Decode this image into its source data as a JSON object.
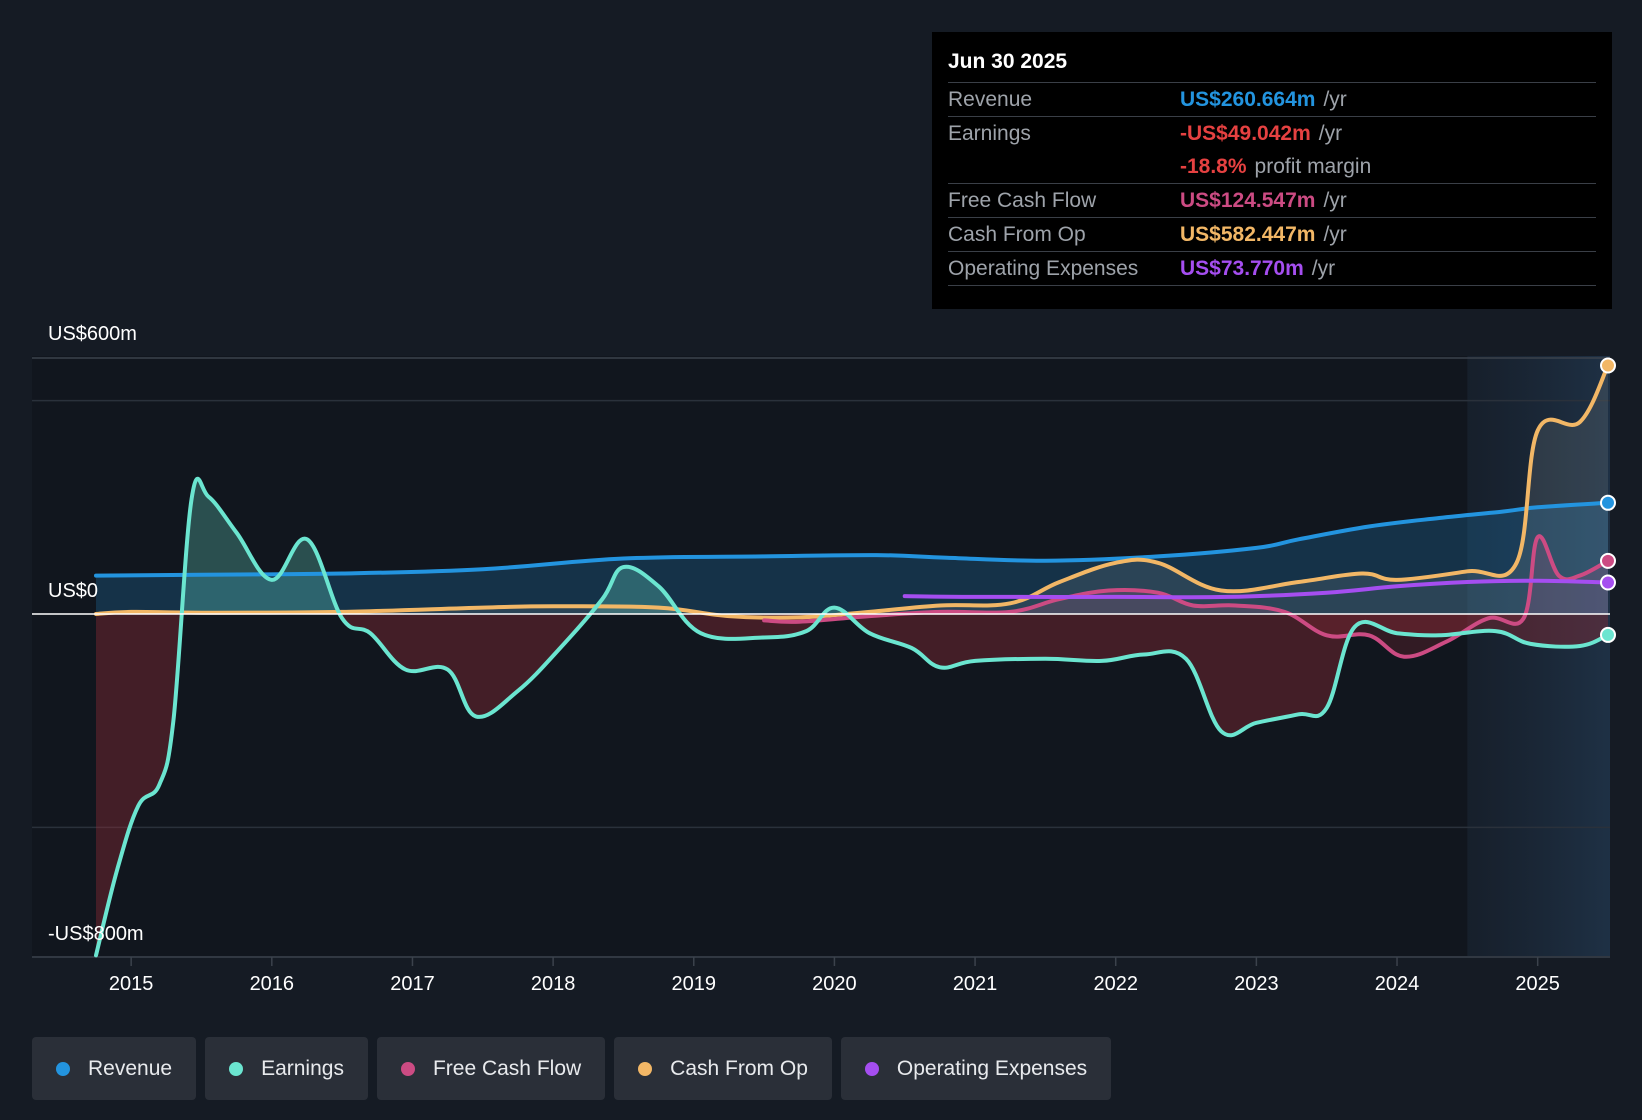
{
  "tooltip": {
    "date": "Jun 30 2025",
    "rows": [
      {
        "label": "Revenue",
        "value": "US$260.664m",
        "unit": "/yr",
        "color": "#2394df"
      },
      {
        "label": "Earnings",
        "value": "-US$49.042m",
        "unit": "/yr",
        "color": "#e64141"
      },
      {
        "label": "",
        "value": "-18.8%",
        "unit": "profit margin",
        "color": "#e64141"
      },
      {
        "label": "Free Cash Flow",
        "value": "US$124.547m",
        "unit": "/yr",
        "color": "#cc4b83"
      },
      {
        "label": "Cash From Op",
        "value": "US$582.447m",
        "unit": "/yr",
        "color": "#f2b766"
      },
      {
        "label": "Operating Expenses",
        "value": "US$73.770m",
        "unit": "/yr",
        "color": "#a54ef0"
      }
    ]
  },
  "legend": [
    {
      "label": "Revenue",
      "color": "#2394df"
    },
    {
      "label": "Earnings",
      "color": "#6be5d0"
    },
    {
      "label": "Free Cash Flow",
      "color": "#cc4b83"
    },
    {
      "label": "Cash From Op",
      "color": "#f2b766"
    },
    {
      "label": "Operating Expenses",
      "color": "#a54ef0"
    }
  ],
  "chart_data": {
    "type": "line",
    "title": "",
    "xlabel": "",
    "ylabel": "",
    "ylim": [
      -800,
      600
    ],
    "y_tick_labels": [
      {
        "value": 600,
        "label": "US$600m"
      },
      {
        "value": 0,
        "label": "US$0"
      },
      {
        "value": -800,
        "label": "-US$800m"
      }
    ],
    "x_tick_labels": [
      "2015",
      "2016",
      "2017",
      "2018",
      "2019",
      "2020",
      "2021",
      "2022",
      "2023",
      "2024",
      "2025"
    ],
    "forecast_shade_start": 2024.5,
    "series": [
      {
        "name": "Revenue",
        "color": "#2394df",
        "fill": true,
        "points": [
          [
            2014.75,
            90
          ],
          [
            2015.5,
            92
          ],
          [
            2016.5,
            95
          ],
          [
            2017.5,
            105
          ],
          [
            2018.5,
            130
          ],
          [
            2019.5,
            135
          ],
          [
            2020.3,
            138
          ],
          [
            2020.8,
            132
          ],
          [
            2021.5,
            125
          ],
          [
            2022.3,
            135
          ],
          [
            2023.0,
            155
          ],
          [
            2023.3,
            175
          ],
          [
            2023.8,
            205
          ],
          [
            2024.3,
            225
          ],
          [
            2024.75,
            240
          ],
          [
            2025.0,
            250
          ],
          [
            2025.5,
            260.664
          ]
        ]
      },
      {
        "name": "Earnings",
        "color": "#6be5d0",
        "fill": true,
        "points": [
          [
            2014.75,
            -800
          ],
          [
            2014.9,
            -600
          ],
          [
            2015.05,
            -450
          ],
          [
            2015.2,
            -400
          ],
          [
            2015.3,
            -250
          ],
          [
            2015.43,
            270
          ],
          [
            2015.55,
            275
          ],
          [
            2015.75,
            190
          ],
          [
            2016.0,
            80
          ],
          [
            2016.25,
            175
          ],
          [
            2016.5,
            -10
          ],
          [
            2016.7,
            -45
          ],
          [
            2016.95,
            -130
          ],
          [
            2017.25,
            -130
          ],
          [
            2017.45,
            -240
          ],
          [
            2017.75,
            -180
          ],
          [
            2018.05,
            -80
          ],
          [
            2018.35,
            35
          ],
          [
            2018.5,
            110
          ],
          [
            2018.75,
            65
          ],
          [
            2019.05,
            -45
          ],
          [
            2019.5,
            -55
          ],
          [
            2019.8,
            -40
          ],
          [
            2020.0,
            15
          ],
          [
            2020.25,
            -45
          ],
          [
            2020.55,
            -80
          ],
          [
            2020.75,
            -125
          ],
          [
            2021.0,
            -110
          ],
          [
            2021.5,
            -105
          ],
          [
            2021.9,
            -110
          ],
          [
            2022.2,
            -95
          ],
          [
            2022.5,
            -105
          ],
          [
            2022.75,
            -275
          ],
          [
            2023.0,
            -255
          ],
          [
            2023.3,
            -235
          ],
          [
            2023.5,
            -220
          ],
          [
            2023.7,
            -30
          ],
          [
            2024.0,
            -45
          ],
          [
            2024.3,
            -50
          ],
          [
            2024.7,
            -40
          ],
          [
            2024.95,
            -70
          ],
          [
            2025.3,
            -75
          ],
          [
            2025.5,
            -49.042
          ]
        ]
      },
      {
        "name": "Free Cash Flow",
        "color": "#cc4b83",
        "fill": true,
        "points": [
          [
            2019.5,
            -15
          ],
          [
            2019.75,
            -18
          ],
          [
            2020.25,
            -5
          ],
          [
            2020.75,
            5
          ],
          [
            2021.25,
            5
          ],
          [
            2021.6,
            35
          ],
          [
            2021.95,
            55
          ],
          [
            2022.3,
            50
          ],
          [
            2022.55,
            20
          ],
          [
            2022.85,
            20
          ],
          [
            2023.2,
            5
          ],
          [
            2023.5,
            -50
          ],
          [
            2023.8,
            -50
          ],
          [
            2024.05,
            -100
          ],
          [
            2024.35,
            -65
          ],
          [
            2024.65,
            -10
          ],
          [
            2024.9,
            -10
          ],
          [
            2025.0,
            180
          ],
          [
            2025.15,
            90
          ],
          [
            2025.3,
            90
          ],
          [
            2025.5,
            124.547
          ]
        ]
      },
      {
        "name": "Cash From Op",
        "color": "#f2b766",
        "fill": true,
        "points": [
          [
            2014.75,
            0
          ],
          [
            2015.0,
            5
          ],
          [
            2015.5,
            3
          ],
          [
            2016.5,
            5
          ],
          [
            2017.5,
            15
          ],
          [
            2018.0,
            18
          ],
          [
            2018.75,
            15
          ],
          [
            2019.25,
            -5
          ],
          [
            2019.75,
            -8
          ],
          [
            2020.25,
            5
          ],
          [
            2020.75,
            20
          ],
          [
            2021.25,
            25
          ],
          [
            2021.6,
            75
          ],
          [
            2022.0,
            120
          ],
          [
            2022.3,
            120
          ],
          [
            2022.75,
            55
          ],
          [
            2023.3,
            75
          ],
          [
            2023.75,
            95
          ],
          [
            2024.0,
            80
          ],
          [
            2024.5,
            100
          ],
          [
            2024.85,
            120
          ],
          [
            2025.0,
            430
          ],
          [
            2025.3,
            450
          ],
          [
            2025.5,
            582.447
          ]
        ]
      },
      {
        "name": "Operating Expenses",
        "color": "#a54ef0",
        "fill": false,
        "points": [
          [
            2020.5,
            42
          ],
          [
            2021.0,
            40
          ],
          [
            2022.0,
            40
          ],
          [
            2022.8,
            40
          ],
          [
            2023.5,
            50
          ],
          [
            2024.0,
            65
          ],
          [
            2024.5,
            75
          ],
          [
            2025.0,
            78
          ],
          [
            2025.5,
            73.77
          ]
        ]
      }
    ]
  }
}
